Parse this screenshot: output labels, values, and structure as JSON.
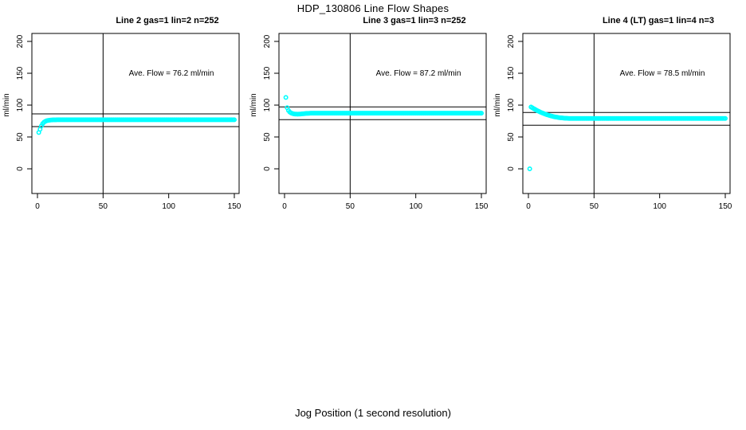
{
  "title": "HDP_130806  Line Flow Shapes",
  "xlabel": "Jog Position (1 second resolution)",
  "colors": {
    "points": "#00ffff",
    "axis": "#000000",
    "background": "#ffffff"
  },
  "axes": {
    "ylabel": "ml/min",
    "x_ticks": [
      0,
      50,
      100,
      150
    ],
    "y_ticks": [
      0,
      50,
      100,
      150,
      200
    ],
    "xlim": [
      0,
      150
    ],
    "ylim": [
      0,
      200
    ],
    "grid": false
  },
  "chart_data": [
    {
      "type": "scatter",
      "title": "Line 2 gas=1 lin=2 n=252",
      "annotation": "Ave. Flow =  76.2  ml/min",
      "ave_flow_ml_min": 76.2,
      "ref_lines": {
        "vline_x": 50,
        "hline_upper": 86.2,
        "hline_lower": 66.2
      },
      "points": [
        [
          1,
          57
        ],
        [
          2,
          62
        ],
        [
          3,
          67.4
        ],
        [
          4,
          70.9
        ],
        [
          5,
          73.1
        ],
        [
          6,
          74.5
        ],
        [
          7,
          75.4
        ],
        [
          8,
          76
        ],
        [
          9,
          76.3
        ],
        [
          10,
          76.5
        ],
        [
          11,
          76.7
        ],
        [
          12,
          76.8
        ],
        [
          13,
          76.9
        ],
        [
          14,
          76.9
        ],
        [
          15,
          77
        ],
        [
          16,
          77
        ],
        [
          17,
          77
        ],
        [
          18,
          77
        ],
        [
          19,
          77
        ],
        [
          20,
          77
        ]
      ],
      "flat_tail": {
        "from_x": 21,
        "to_x": 150,
        "y": 77
      }
    },
    {
      "type": "scatter",
      "title": "Line 3 gas=1 lin=3 n=252",
      "annotation": "Ave. Flow =  87.2  ml/min",
      "ave_flow_ml_min": 87.2,
      "ref_lines": {
        "vline_x": 50,
        "hline_upper": 97.2,
        "hline_lower": 77.2
      },
      "points": [
        [
          1,
          112
        ],
        [
          2,
          96
        ],
        [
          3,
          91.5
        ],
        [
          4,
          89
        ],
        [
          5,
          87.6
        ],
        [
          6,
          86.8
        ],
        [
          7,
          86.3
        ],
        [
          8,
          86
        ],
        [
          9,
          85.9
        ],
        [
          10,
          85.8
        ],
        [
          11,
          85.9
        ],
        [
          12,
          86
        ],
        [
          13,
          86.2
        ],
        [
          14,
          86.4
        ],
        [
          15,
          86.6
        ],
        [
          16,
          86.8
        ],
        [
          17,
          87
        ],
        [
          18,
          87.1
        ],
        [
          19,
          87.2
        ],
        [
          20,
          87.3
        ]
      ],
      "flat_tail": {
        "from_x": 21,
        "to_x": 150,
        "y": 87.4
      }
    },
    {
      "type": "scatter",
      "title": "Line 4 (LT) gas=1 lin=4 n=3",
      "annotation": "Ave. Flow =  78.5  ml/min",
      "ave_flow_ml_min": 78.5,
      "ref_lines": {
        "vline_x": 50,
        "hline_upper": 88.5,
        "hline_lower": 68.5
      },
      "points": [
        [
          1,
          0
        ],
        [
          2,
          97
        ],
        [
          3,
          95.8
        ],
        [
          4,
          94.6
        ],
        [
          5,
          93.4
        ],
        [
          6,
          92.2
        ],
        [
          7,
          91.1
        ],
        [
          8,
          90.1
        ],
        [
          9,
          89.1
        ],
        [
          10,
          88.2
        ],
        [
          11,
          87.3
        ],
        [
          12,
          86.5
        ],
        [
          13,
          85.7
        ],
        [
          14,
          85
        ],
        [
          15,
          84.3
        ],
        [
          16,
          83.7
        ],
        [
          17,
          83.1
        ],
        [
          18,
          82.6
        ],
        [
          19,
          82.1
        ],
        [
          20,
          81.6
        ],
        [
          21,
          81.2
        ],
        [
          22,
          80.9
        ],
        [
          23,
          80.5
        ],
        [
          24,
          80.2
        ],
        [
          25,
          80
        ],
        [
          26,
          79.8
        ],
        [
          27,
          79.6
        ],
        [
          28,
          79.4
        ],
        [
          29,
          79.3
        ],
        [
          30,
          79.2
        ],
        [
          31,
          79.1
        ],
        [
          32,
          79.1
        ],
        [
          33,
          79
        ],
        [
          34,
          79
        ],
        [
          35,
          79
        ],
        [
          36,
          79
        ],
        [
          37,
          79
        ],
        [
          38,
          79
        ],
        [
          39,
          79
        ],
        [
          40,
          79
        ]
      ],
      "flat_tail": {
        "from_x": 41,
        "to_x": 150,
        "y": 79
      }
    }
  ]
}
